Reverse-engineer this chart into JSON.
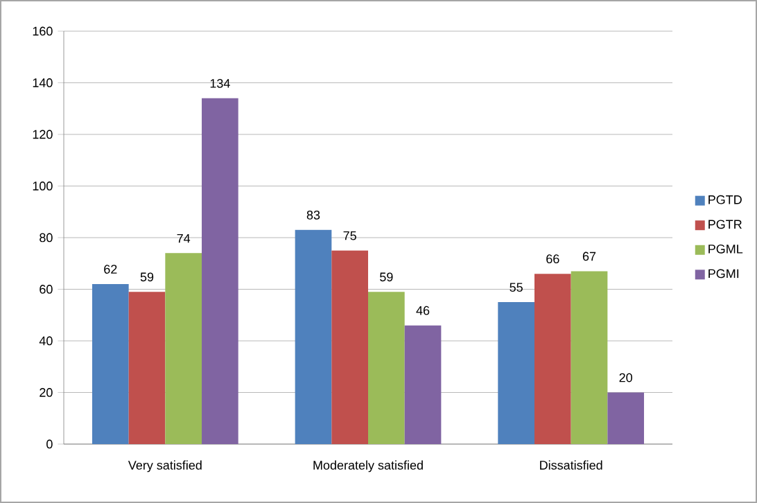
{
  "chart_data": {
    "type": "bar",
    "categories": [
      "Very satisfied",
      "Moderately satisfied",
      "Dissatisfied"
    ],
    "series": [
      {
        "name": "PGTD",
        "color": "#4f81bd",
        "values": [
          62,
          83,
          55
        ]
      },
      {
        "name": "PGTR",
        "color": "#c0504d",
        "values": [
          59,
          75,
          66
        ]
      },
      {
        "name": "PGML",
        "color": "#9bbb59",
        "values": [
          74,
          59,
          67
        ]
      },
      {
        "name": "PGMI",
        "color": "#8064a2",
        "values": [
          134,
          46,
          20
        ]
      }
    ],
    "ylim": [
      0,
      160
    ],
    "yticks": [
      0,
      20,
      40,
      60,
      80,
      100,
      120,
      140,
      160
    ],
    "grid": "y",
    "legend": "right",
    "data_labels": true
  }
}
